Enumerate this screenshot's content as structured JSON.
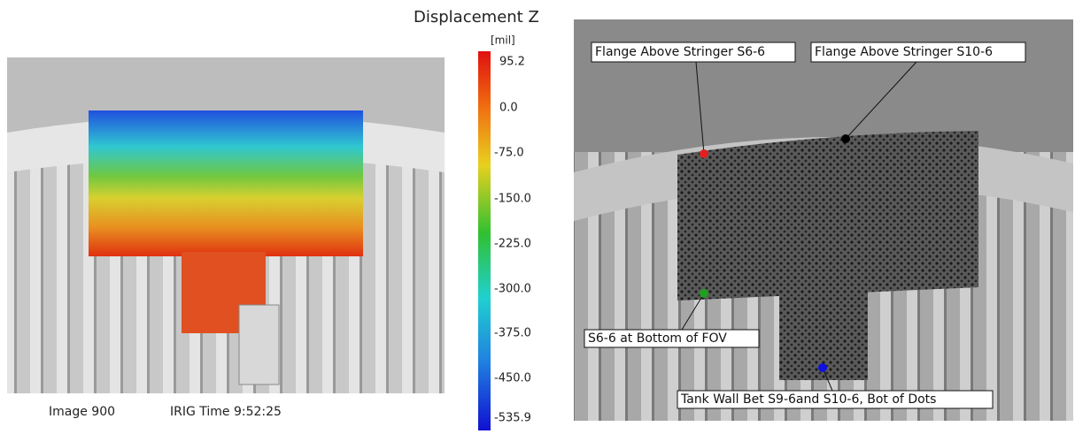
{
  "colorbar": {
    "title": "Displacement Z",
    "unit": "[mil]",
    "ticks": [
      "95.2",
      "0.0",
      "-75.0",
      "-150.0",
      "-225.0",
      "-300.0",
      "-375.0",
      "-450.0",
      "-535.9"
    ]
  },
  "left_image": {
    "image_label": "Image 900",
    "time_label": "IRIG Time  9:52:25"
  },
  "right_image": {
    "annotations": [
      "Flange Above Stringer S6-6",
      "Flange Above Stringer S10-6",
      "S6-6 at Bottom of FOV",
      "Tank Wall Bet S9-6and S10-6, Bot of Dots"
    ]
  }
}
